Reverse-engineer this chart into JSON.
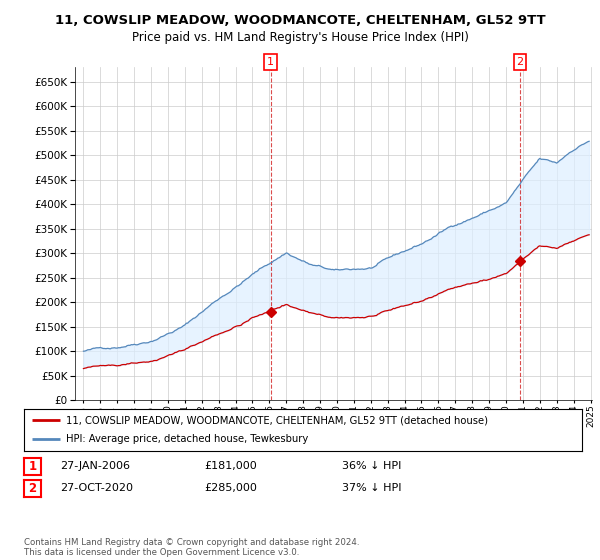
{
  "title": "11, COWSLIP MEADOW, WOODMANCOTE, CHELTENHAM, GL52 9TT",
  "subtitle": "Price paid vs. HM Land Registry's House Price Index (HPI)",
  "legend_line1": "11, COWSLIP MEADOW, WOODMANCOTE, CHELTENHAM, GL52 9TT (detached house)",
  "legend_line2": "HPI: Average price, detached house, Tewkesbury",
  "annotation1_date": "27-JAN-2006",
  "annotation1_price": "£181,000",
  "annotation1_hpi": "36% ↓ HPI",
  "annotation2_date": "27-OCT-2020",
  "annotation2_price": "£285,000",
  "annotation2_hpi": "37% ↓ HPI",
  "footer": "Contains HM Land Registry data © Crown copyright and database right 2024.\nThis data is licensed under the Open Government Licence v3.0.",
  "sale_color": "#cc0000",
  "hpi_color": "#5588bb",
  "fill_color": "#ddeeff",
  "vline_color": "#cc0000",
  "ylim": [
    0,
    680000
  ],
  "yticks": [
    0,
    50000,
    100000,
    150000,
    200000,
    250000,
    300000,
    350000,
    400000,
    450000,
    500000,
    550000,
    600000,
    650000
  ],
  "background_color": "#ffffff",
  "grid_color": "#cccccc",
  "sale1_x": 2006.08,
  "sale1_y": 181000,
  "sale2_x": 2020.83,
  "sale2_y": 285000,
  "xmin": 1995,
  "xmax": 2025
}
